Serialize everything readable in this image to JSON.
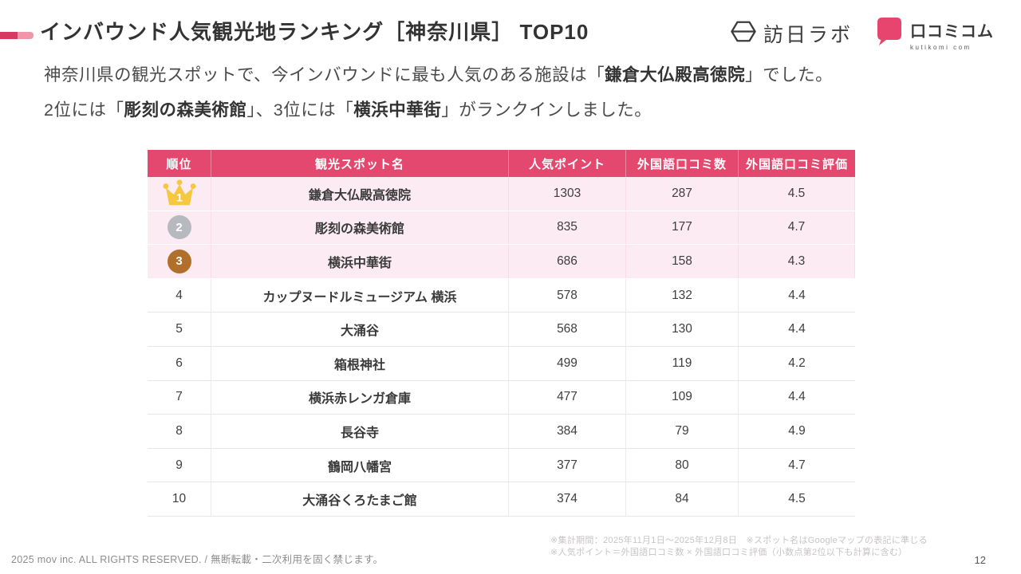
{
  "page": {
    "title": "インバウンド人気観光地ランキング［神奈川県］ TOP10",
    "page_number": "12"
  },
  "logos": {
    "houjitsu_lab": {
      "name": "訪日ラボ"
    },
    "kutikomi": {
      "name": "口コミコム",
      "tagline": "kutikomi com",
      "brand_color": "#E8456E"
    }
  },
  "description": {
    "lines": [
      {
        "segments": [
          {
            "text": "神奈川県の観光スポットで、今インバウンドに最も人気のある施設は「",
            "bold": false
          },
          {
            "text": "鎌倉大仏殿高徳院",
            "bold": true
          },
          {
            "text": "」でした。",
            "bold": false
          }
        ]
      },
      {
        "segments": [
          {
            "text": "2位には「",
            "bold": false
          },
          {
            "text": "彫刻の森美術館",
            "bold": true
          },
          {
            "text": "」、3位には「",
            "bold": false
          },
          {
            "text": "横浜中華街",
            "bold": true
          },
          {
            "text": "」がランクインしました。",
            "bold": false
          }
        ]
      }
    ]
  },
  "table": {
    "headers": [
      "順位",
      "観光スポット名",
      "人気ポイント",
      "外国語口コミ数",
      "外国語口コミ評価"
    ],
    "colors": {
      "header_bg": "#E5486F",
      "top3_row_bg": "#FCEBF2",
      "crown_gold": "#F5C840",
      "silver": "#B6BABF",
      "bronze": "#B06F2B"
    },
    "rows": [
      {
        "rank": 1,
        "badge": "gold-crown",
        "name": "鎌倉大仏殿高徳院",
        "points": "1303",
        "reviews": "287",
        "rating": "4.5"
      },
      {
        "rank": 2,
        "badge": "silver-circle",
        "name": "彫刻の森美術館",
        "points": "835",
        "reviews": "177",
        "rating": "4.7"
      },
      {
        "rank": 3,
        "badge": "bronze-circle",
        "name": "横浜中華街",
        "points": "686",
        "reviews": "158",
        "rating": "4.3"
      },
      {
        "rank": 4,
        "badge": null,
        "name": "カップヌードルミュージアム 横浜",
        "points": "578",
        "reviews": "132",
        "rating": "4.4"
      },
      {
        "rank": 5,
        "badge": null,
        "name": "大涌谷",
        "points": "568",
        "reviews": "130",
        "rating": "4.4"
      },
      {
        "rank": 6,
        "badge": null,
        "name": "箱根神社",
        "points": "499",
        "reviews": "119",
        "rating": "4.2"
      },
      {
        "rank": 7,
        "badge": null,
        "name": "横浜赤レンガ倉庫",
        "points": "477",
        "reviews": "109",
        "rating": "4.4"
      },
      {
        "rank": 8,
        "badge": null,
        "name": "長谷寺",
        "points": "384",
        "reviews": "79",
        "rating": "4.9"
      },
      {
        "rank": 9,
        "badge": null,
        "name": "鶴岡八幡宮",
        "points": "377",
        "reviews": "80",
        "rating": "4.7"
      },
      {
        "rank": 10,
        "badge": null,
        "name": "大涌谷くろたまご館",
        "points": "374",
        "reviews": "84",
        "rating": "4.5"
      }
    ]
  },
  "footer": {
    "copyright": "2025 mov inc. ALL RIGHTS RESERVED. / 無断転載・二次利用を固く禁じます。",
    "notes": [
      "※集計期間：2025年11月1日～2025年12月8日　※スポット名はGoogleマップの表記に準じる",
      "※人気ポイント＝外国語口コミ数 × 外国語口コミ評価（小数点第2位以下も計算に含む）"
    ]
  }
}
